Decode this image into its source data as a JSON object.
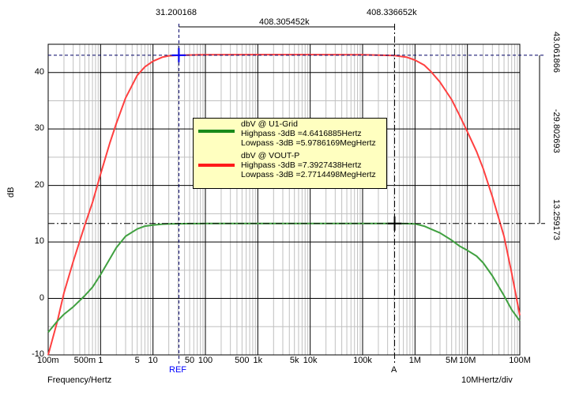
{
  "chart_data": {
    "type": "line",
    "title": "",
    "xlabel": "Frequency/Hertz",
    "ylabel": "dB",
    "x_scale": "log",
    "xlim": [
      0.1,
      100000000
    ],
    "ylim": [
      -10,
      45
    ],
    "grid": true,
    "x_tick_labels": [
      {
        "x": 0.1,
        "text": "100m"
      },
      {
        "x": 0.5,
        "text": "500m"
      },
      {
        "x": 1,
        "text": "1"
      },
      {
        "x": 5,
        "text": "5"
      },
      {
        "x": 10,
        "text": "10"
      },
      {
        "x": 50,
        "text": "50"
      },
      {
        "x": 100,
        "text": "100"
      },
      {
        "x": 500,
        "text": "500"
      },
      {
        "x": 1000,
        "text": "1k"
      },
      {
        "x": 5000,
        "text": "5k"
      },
      {
        "x": 10000,
        "text": "10k"
      },
      {
        "x": 100000,
        "text": "100k"
      },
      {
        "x": 1000000,
        "text": "1M"
      },
      {
        "x": 5000000,
        "text": "5M"
      },
      {
        "x": 10000000,
        "text": "10M"
      },
      {
        "x": 100000000,
        "text": "100M"
      }
    ],
    "y_ticks": [
      -10,
      0,
      10,
      20,
      30,
      40
    ],
    "series": [
      {
        "name": "dbV @ VOUT-P",
        "color": "#ff4040",
        "x": [
          0.1,
          0.15,
          0.2,
          0.3,
          0.5,
          0.7,
          1,
          1.5,
          2,
          3,
          5,
          7,
          10,
          15,
          20,
          31.2,
          50,
          100,
          1000,
          10000,
          100000,
          408336,
          700000,
          1000000,
          1500000,
          2000000,
          3000000,
          5000000,
          7000000,
          10000000,
          15000000,
          20000000,
          30000000,
          50000000,
          70000000,
          100000000
        ],
        "y": [
          -10,
          -4,
          1,
          6.5,
          13,
          17,
          22,
          27.5,
          31,
          35.5,
          39.5,
          41,
          42,
          42.7,
          42.95,
          43.06,
          43.1,
          43.15,
          43.17,
          43.17,
          43.15,
          43.0,
          42.7,
          42.2,
          41.3,
          40.2,
          38.3,
          35.2,
          32.5,
          29.5,
          26.0,
          23.0,
          18.0,
          11.0,
          4.5,
          -3.0
        ]
      },
      {
        "name": "dbV @ U1-Grid",
        "color": "#40a040",
        "x": [
          0.1,
          0.15,
          0.2,
          0.3,
          0.5,
          0.7,
          1,
          1.5,
          2,
          3,
          5,
          7,
          10,
          15,
          20,
          31.2,
          50,
          100,
          1000,
          10000,
          100000,
          408336,
          700000,
          1000000,
          1500000,
          2000000,
          3000000,
          5000000,
          7000000,
          10000000,
          15000000,
          20000000,
          30000000,
          50000000,
          70000000,
          100000000
        ],
        "y": [
          -6,
          -4,
          -2.8,
          -1.5,
          0.5,
          2,
          4.2,
          7,
          9,
          11,
          12.3,
          12.8,
          13.0,
          13.15,
          13.2,
          13.22,
          13.25,
          13.26,
          13.26,
          13.26,
          13.26,
          13.26,
          13.24,
          13.2,
          12.8,
          12.3,
          11.6,
          10.3,
          9.3,
          8.5,
          7.5,
          6.3,
          4.0,
          0.5,
          -2.0,
          -4.0
        ]
      }
    ],
    "legend": {
      "placement": "center",
      "entries": [
        {
          "name": "dbV @ U1-Grid",
          "color": "#1a8a1a",
          "lines": [
            "Highpass -3dB =4.6416885Hertz",
            "Lowpass -3dB =5.9786169MegHertz"
          ]
        },
        {
          "name": "dbV @ VOUT-P",
          "color": "#ff1a1a",
          "lines": [
            "Highpass -3dB =7.3927438Hertz",
            "Lowpass -3dB =2.7714498MegHertz"
          ]
        }
      ]
    },
    "cursors": {
      "ref": {
        "label": "REF",
        "x": 31.200168,
        "x_text": "31.200168",
        "y": 43.061866,
        "y_text": "43.061866",
        "color": "#0000ff"
      },
      "a": {
        "label": "A",
        "x": 408336.652,
        "x_text": "408.336652k",
        "y": 13.259173,
        "y_text": "13.259173",
        "color": "#000000"
      },
      "delta_x_text": "408.305452k",
      "delta_y_text": "-29.802693"
    },
    "x_div_text": "10MHertz/div"
  }
}
